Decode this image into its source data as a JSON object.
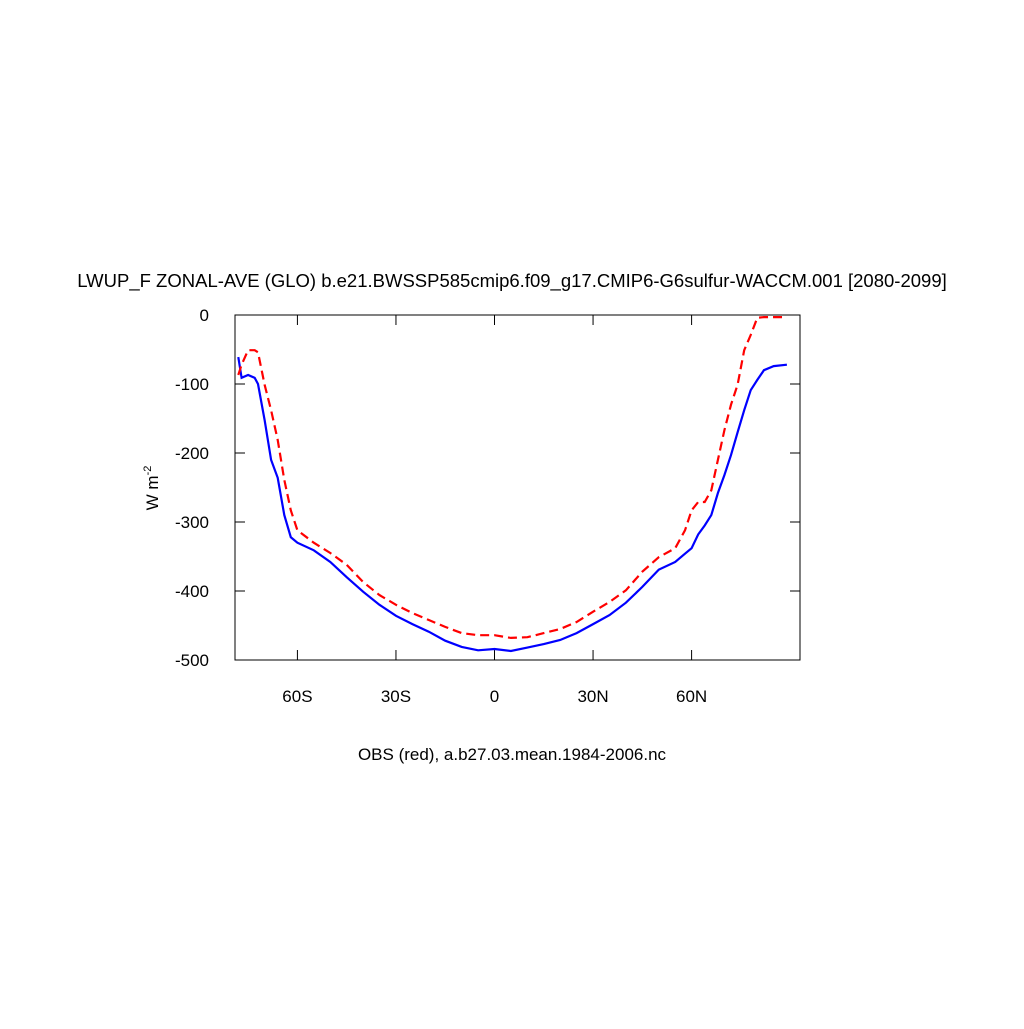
{
  "chart_data": {
    "type": "line",
    "title": "LWUP_F ZONAL-AVE (GLO) b.e21.BWSSP585cmip6.f09_g17.CMIP6-G6sulfur-WACCM.001 [2080-2099]",
    "ylabel": {
      "text": "W m",
      "superscript": "-2"
    },
    "annotation": "OBS (red), a.b27.03.mean.1984-2006.nc",
    "x": [
      -78,
      -77,
      -75,
      -73,
      -72,
      -70,
      -68,
      -66,
      -64,
      -62,
      -60,
      -55,
      -50,
      -45,
      -40,
      -35,
      -30,
      -25,
      -20,
      -15,
      -10,
      -5,
      0,
      5,
      10,
      15,
      20,
      25,
      30,
      35,
      40,
      45,
      50,
      55,
      58,
      60,
      62,
      64,
      66,
      68,
      70,
      72,
      74,
      76,
      78,
      80,
      82,
      85,
      89
    ],
    "series": [
      {
        "color": "#0000ff",
        "dashed": false,
        "values": [
          -61,
          -91,
          -87,
          -91,
          -100,
          -152,
          -210,
          -236,
          -290,
          -322,
          -330,
          -341,
          -358,
          -380,
          -401,
          -420,
          -436,
          -448,
          -459,
          -472,
          -481,
          -486,
          -484,
          -487,
          -482,
          -477,
          -471,
          -461,
          -448,
          -435,
          -417,
          -394,
          -369,
          -358,
          -346,
          -338,
          -318,
          -305,
          -290,
          -258,
          -232,
          -203,
          -170,
          -138,
          -109,
          -94,
          -80,
          -74,
          -72
        ]
      },
      {
        "color": "#ff0000",
        "dashed": true,
        "values": [
          -87,
          -72,
          -51,
          -51,
          -54,
          -101,
          -138,
          -181,
          -239,
          -283,
          -312,
          -330,
          -345,
          -362,
          -387,
          -406,
          -420,
          -432,
          -442,
          -452,
          -461,
          -464,
          -464,
          -468,
          -467,
          -461,
          -455,
          -445,
          -430,
          -416,
          -399,
          -372,
          -351,
          -338,
          -312,
          -283,
          -271,
          -271,
          -254,
          -210,
          -167,
          -130,
          -101,
          -51,
          -29,
          -4,
          -3,
          -3,
          -3
        ]
      }
    ],
    "xlim": [
      -79,
      93
    ],
    "xticks": [
      {
        "value": -60,
        "label": "60S"
      },
      {
        "value": -30,
        "label": "30S"
      },
      0,
      {
        "value": 30,
        "label": "30N"
      },
      {
        "value": 60,
        "label": "60N"
      }
    ],
    "ylim": [
      -500,
      0
    ],
    "yticks": [
      0,
      -100,
      -200,
      -300,
      -400,
      -500
    ],
    "grid": false
  }
}
